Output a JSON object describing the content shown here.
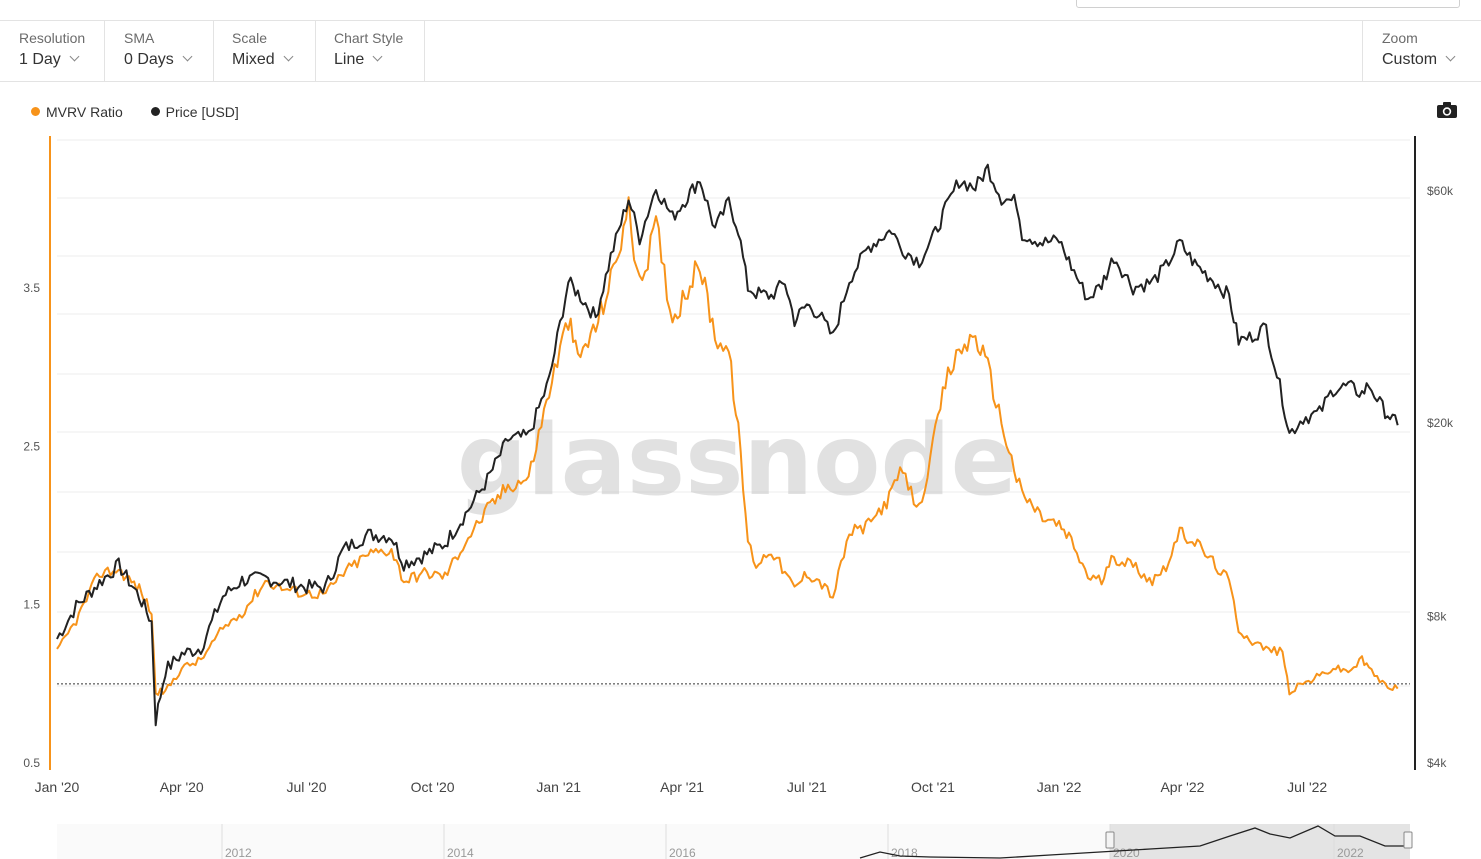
{
  "toolbar": {
    "resolution": {
      "label": "Resolution",
      "value": "1 Day"
    },
    "sma": {
      "label": "SMA",
      "value": "0 Days"
    },
    "scale": {
      "label": "Scale",
      "value": "Mixed"
    },
    "chart_style": {
      "label": "Chart Style",
      "value": "Line"
    },
    "zoom": {
      "label": "Zoom",
      "value": "Custom"
    }
  },
  "watermark": "glassnode",
  "icons": {
    "camera": "camera-icon"
  },
  "colors": {
    "mvrv": "#f7931a",
    "price": "#222222",
    "grid": "#ececec",
    "reference_line": "#333333"
  },
  "chart_data": {
    "type": "line",
    "legend_position": "top-left",
    "x_ticks": [
      "Jan '20",
      "Apr '20",
      "Jul '20",
      "Oct '20",
      "Jan '21",
      "Apr '21",
      "Jul '21",
      "Oct '21",
      "Jan '22",
      "Apr '22",
      "Jul '22"
    ],
    "y_left": {
      "ticks": [
        "0.5",
        "1.5",
        "2.5",
        "3.5"
      ],
      "range": [
        0.5,
        4.5
      ]
    },
    "y_right": {
      "ticks": [
        "$4k",
        "$8k",
        "$20k",
        "$60k"
      ],
      "scale": "log",
      "range": [
        4000,
        80000
      ]
    },
    "reference_line": 1.0,
    "navigator_ticks": [
      "2012",
      "2014",
      "2016",
      "2018",
      "2020",
      "2022"
    ],
    "series": [
      {
        "name": "MVRV Ratio",
        "axis": "left",
        "x": [
          "2020-01-01",
          "2020-01-15",
          "2020-02-01",
          "2020-02-15",
          "2020-03-01",
          "2020-03-10",
          "2020-03-13",
          "2020-03-20",
          "2020-04-01",
          "2020-04-15",
          "2020-05-01",
          "2020-05-15",
          "2020-06-01",
          "2020-06-15",
          "2020-07-01",
          "2020-07-15",
          "2020-07-28",
          "2020-08-15",
          "2020-09-01",
          "2020-09-10",
          "2020-09-25",
          "2020-10-10",
          "2020-10-25",
          "2020-11-10",
          "2020-11-25",
          "2020-12-10",
          "2020-12-25",
          "2021-01-08",
          "2021-01-15",
          "2021-01-28",
          "2021-02-08",
          "2021-02-21",
          "2021-03-01",
          "2021-03-13",
          "2021-03-25",
          "2021-04-05",
          "2021-04-14",
          "2021-04-25",
          "2021-05-05",
          "2021-05-12",
          "2021-05-19",
          "2021-05-25",
          "2021-06-05",
          "2021-06-15",
          "2021-06-22",
          "2021-07-01",
          "2021-07-10",
          "2021-07-20",
          "2021-08-01",
          "2021-08-15",
          "2021-09-01",
          "2021-09-07",
          "2021-09-21",
          "2021-10-01",
          "2021-10-10",
          "2021-10-20",
          "2021-11-01",
          "2021-11-10",
          "2021-11-20",
          "2021-12-01",
          "2021-12-05",
          "2021-12-20",
          "2022-01-01",
          "2022-01-10",
          "2022-01-22",
          "2022-02-01",
          "2022-02-10",
          "2022-02-24",
          "2022-03-10",
          "2022-03-20",
          "2022-03-30",
          "2022-04-10",
          "2022-04-25",
          "2022-05-05",
          "2022-05-12",
          "2022-05-20",
          "2022-06-01",
          "2022-06-13",
          "2022-06-18",
          "2022-06-28",
          "2022-07-10",
          "2022-07-20",
          "2022-07-31",
          "2022-08-10",
          "2022-08-15",
          "2022-08-25",
          "2022-09-05"
        ],
        "values": [
          1.2,
          1.4,
          1.7,
          1.72,
          1.6,
          1.45,
          0.95,
          0.95,
          1.1,
          1.15,
          1.35,
          1.45,
          1.65,
          1.6,
          1.57,
          1.57,
          1.7,
          1.82,
          1.85,
          1.65,
          1.7,
          1.68,
          1.9,
          2.1,
          2.25,
          2.3,
          2.85,
          3.3,
          3.05,
          3.25,
          3.55,
          4.0,
          3.5,
          3.9,
          3.3,
          3.5,
          3.65,
          3.2,
          3.1,
          2.6,
          1.9,
          1.75,
          1.85,
          1.7,
          1.6,
          1.7,
          1.65,
          1.55,
          1.95,
          2.0,
          2.2,
          2.35,
          2.1,
          2.5,
          2.9,
          3.1,
          3.2,
          3.0,
          2.65,
          2.3,
          2.2,
          2.05,
          2.0,
          1.9,
          1.68,
          1.65,
          1.8,
          1.75,
          1.65,
          1.75,
          1.95,
          1.9,
          1.75,
          1.65,
          1.35,
          1.28,
          1.22,
          1.2,
          0.95,
          1.0,
          1.05,
          1.1,
          1.08,
          1.15,
          1.1,
          1.0,
          0.97
        ]
      },
      {
        "name": "Price [USD]",
        "axis": "right",
        "x": [
          "2020-01-01",
          "2020-01-15",
          "2020-02-01",
          "2020-02-15",
          "2020-03-01",
          "2020-03-10",
          "2020-03-13",
          "2020-03-20",
          "2020-04-01",
          "2020-04-15",
          "2020-05-01",
          "2020-05-15",
          "2020-06-01",
          "2020-06-15",
          "2020-07-01",
          "2020-07-15",
          "2020-07-28",
          "2020-08-15",
          "2020-09-01",
          "2020-09-10",
          "2020-09-25",
          "2020-10-10",
          "2020-10-25",
          "2020-11-10",
          "2020-11-25",
          "2020-12-10",
          "2020-12-25",
          "2021-01-08",
          "2021-01-15",
          "2021-01-28",
          "2021-02-08",
          "2021-02-21",
          "2021-03-01",
          "2021-03-13",
          "2021-03-25",
          "2021-04-05",
          "2021-04-14",
          "2021-04-25",
          "2021-05-05",
          "2021-05-12",
          "2021-05-19",
          "2021-05-25",
          "2021-06-05",
          "2021-06-15",
          "2021-06-22",
          "2021-07-01",
          "2021-07-10",
          "2021-07-20",
          "2021-08-01",
          "2021-08-15",
          "2021-09-01",
          "2021-09-07",
          "2021-09-21",
          "2021-10-01",
          "2021-10-10",
          "2021-10-20",
          "2021-11-01",
          "2021-11-10",
          "2021-11-20",
          "2021-12-01",
          "2021-12-05",
          "2021-12-20",
          "2022-01-01",
          "2022-01-10",
          "2022-01-22",
          "2022-02-01",
          "2022-02-10",
          "2022-02-24",
          "2022-03-10",
          "2022-03-20",
          "2022-03-30",
          "2022-04-10",
          "2022-04-25",
          "2022-05-05",
          "2022-05-12",
          "2022-05-20",
          "2022-06-01",
          "2022-06-13",
          "2022-06-18",
          "2022-06-28",
          "2022-07-10",
          "2022-07-20",
          "2022-07-31",
          "2022-08-10",
          "2022-08-15",
          "2022-08-25",
          "2022-09-05"
        ],
        "values": [
          7200,
          8400,
          9400,
          10200,
          8800,
          7800,
          4900,
          6200,
          6700,
          6900,
          8800,
          9500,
          9600,
          9400,
          9200,
          9200,
          11000,
          11800,
          11700,
          10300,
          10700,
          11300,
          13000,
          15300,
          18500,
          18800,
          24500,
          39000,
          37000,
          33000,
          44000,
          58000,
          48000,
          61000,
          53000,
          58500,
          63500,
          50000,
          57000,
          50000,
          38000,
          37000,
          36500,
          39000,
          32500,
          35000,
          33500,
          30000,
          39500,
          46000,
          50000,
          46000,
          43000,
          48000,
          55000,
          63000,
          61000,
          67000,
          58000,
          57000,
          49000,
          47000,
          47500,
          42000,
          36000,
          38500,
          44000,
          38000,
          39000,
          42000,
          47000,
          42500,
          39000,
          36500,
          29500,
          30000,
          31500,
          22500,
          19000,
          20500,
          21000,
          23500,
          23800,
          23000,
          24000,
          21500,
          19800
        ]
      }
    ]
  }
}
